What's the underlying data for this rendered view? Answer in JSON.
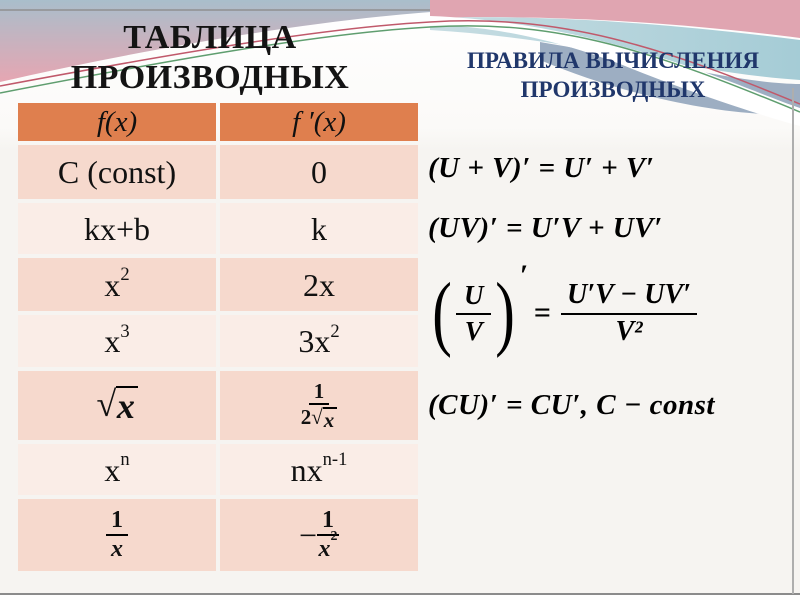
{
  "slide": {
    "left_title": {
      "line1": "ТАБЛИЦА",
      "line2": "ПРОИЗВОДНЫХ"
    },
    "right_title": {
      "line1": "ПРАВИЛА ВЫЧИСЛЕНИЯ",
      "line2": "ПРОИЗВОДНЫХ"
    }
  },
  "colors": {
    "header_bg": "#df7f4e",
    "row_dark": "#f6d9cd",
    "row_light": "#faede7",
    "right_title_color": "#20376b",
    "wave_pink": "#e2a5b1",
    "wave_teal": "#afd0d9",
    "wave_grayblue": "#9daec2",
    "accent_red_line": "#c0596b",
    "accent_green_line": "#5f9e6f",
    "bottom_line": "#8a8a8a"
  },
  "table": {
    "header": {
      "f": "f(x)",
      "d": "f ′(x)"
    },
    "rows": [
      {
        "shade": "dark",
        "f": [
          {
            "t": "txt",
            "v": "C (const)"
          }
        ],
        "d": [
          {
            "t": "txt",
            "v": "0"
          }
        ]
      },
      {
        "shade": "light",
        "f": [
          {
            "t": "txt",
            "v": "kx+b"
          }
        ],
        "d": [
          {
            "t": "txt",
            "v": "k"
          }
        ]
      },
      {
        "shade": "dark",
        "f": [
          {
            "t": "txt",
            "v": "x"
          },
          {
            "t": "sup",
            "v": "2"
          }
        ],
        "d": [
          {
            "t": "txt",
            "v": "2x"
          }
        ]
      },
      {
        "shade": "light",
        "f": [
          {
            "t": "txt",
            "v": "x"
          },
          {
            "t": "sup",
            "v": "3"
          }
        ],
        "d": [
          {
            "t": "txt",
            "v": "3x"
          },
          {
            "t": "sup",
            "v": "2"
          }
        ]
      },
      {
        "shade": "dark",
        "f": [
          {
            "t": "sqrt",
            "arg": [
              {
                "t": "var",
                "v": "x"
              }
            ]
          }
        ],
        "d": [
          {
            "t": "frac",
            "num": [
              {
                "t": "txt",
                "v": "1"
              }
            ],
            "den": [
              {
                "t": "txt",
                "v": "2"
              },
              {
                "t": "sqrt",
                "arg": [
                  {
                    "t": "var",
                    "v": "x"
                  }
                ]
              }
            ]
          }
        ]
      },
      {
        "shade": "light",
        "f": [
          {
            "t": "txt",
            "v": "x"
          },
          {
            "t": "sup",
            "v": "n"
          }
        ],
        "d": [
          {
            "t": "txt",
            "v": "nx"
          },
          {
            "t": "sup",
            "v": "n-1"
          }
        ]
      },
      {
        "shade": "dark",
        "f": [
          {
            "t": "frac",
            "big": true,
            "num": [
              {
                "t": "txt",
                "v": "1"
              }
            ],
            "den": [
              {
                "t": "var",
                "v": "x"
              }
            ]
          }
        ],
        "d": [
          {
            "t": "txt",
            "v": "− "
          },
          {
            "t": "frac",
            "big": true,
            "num": [
              {
                "t": "txt",
                "v": "1"
              }
            ],
            "den": [
              {
                "t": "var",
                "v": "x"
              },
              {
                "t": "sup",
                "v": "2"
              }
            ]
          }
        ]
      }
    ]
  },
  "rules": {
    "line1": "(U + V)′ = U′ + V′",
    "line2": "(UV)′ = U′V + UV′",
    "quotient": {
      "lparen": "(",
      "rparen": ")",
      "lnum": "U",
      "lden": "V",
      "prime": "′",
      "eq": "=",
      "rnum": "U′V − UV′",
      "rden": "V²"
    },
    "line4": "(CU)′ = CU′, C − const"
  }
}
